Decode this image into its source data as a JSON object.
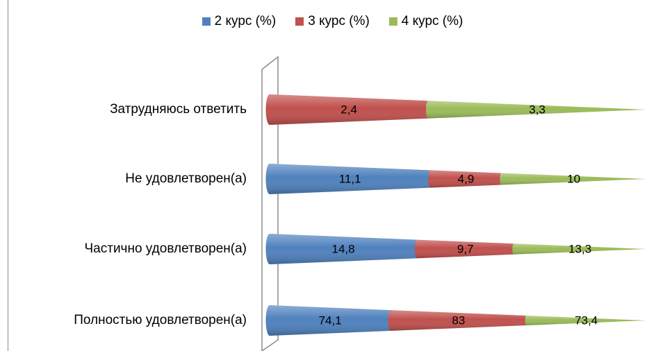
{
  "chart_data": {
    "type": "bar",
    "orientation": "horizontal",
    "stacked": true,
    "percent_stacked": true,
    "shape": "cone",
    "legend_position": "top",
    "categories": [
      "Полностью удовлетворен(а)",
      "Частично удовлетворен(а)",
      "Не удовлетворен(а)",
      "Затрудняюсь ответить"
    ],
    "series": [
      {
        "name": "2 курс (%)",
        "color": "#4f81bd",
        "values": [
          74.1,
          14.8,
          11.1,
          0
        ]
      },
      {
        "name": "3 курс (%)",
        "color": "#c0504d",
        "values": [
          83,
          9.7,
          4.9,
          2.4
        ]
      },
      {
        "name": "4 курс (%)",
        "color": "#9bbb59",
        "values": [
          73.4,
          13.3,
          10,
          3.3
        ]
      }
    ],
    "data_labels": [
      [
        "74,1",
        "14,8",
        "11,1",
        "0"
      ],
      [
        "83",
        "9,7",
        "4,9",
        "2,4"
      ],
      [
        "73,4",
        "13,3",
        "10",
        "3,3"
      ]
    ],
    "title": "",
    "xlabel": "",
    "ylabel": ""
  }
}
